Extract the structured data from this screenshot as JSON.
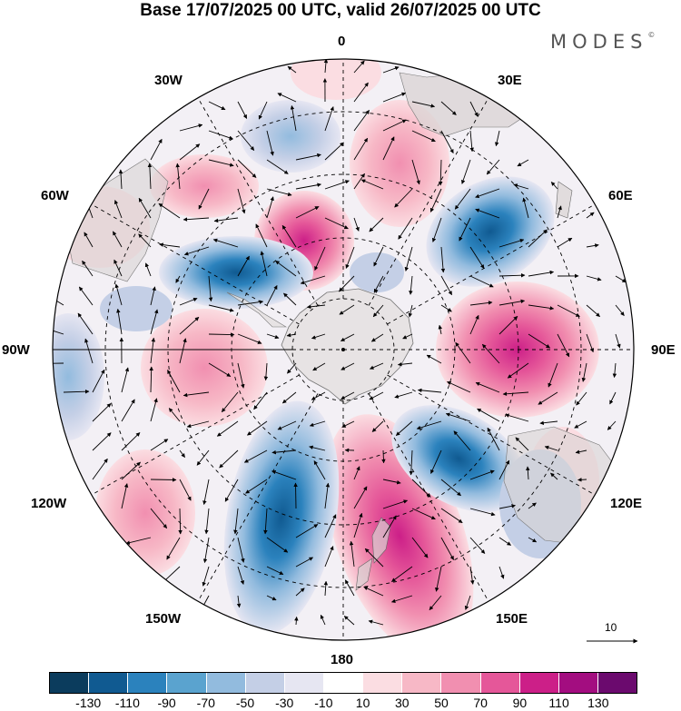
{
  "title": "Base 17/07/2025 00 UTC, valid 26/07/2025 00 UTC",
  "logo": "MODES",
  "logo_mark": "©",
  "meridian_labels": {
    "lon_0": "0",
    "lon_30e": "30E",
    "lon_60e": "60E",
    "lon_90e": "90E",
    "lon_120e": "120E",
    "lon_150e": "150E",
    "lon_180": "180",
    "lon_150w": "150W",
    "lon_120w": "120W",
    "lon_90w": "90W",
    "lon_60w": "60W",
    "lon_30w": "30W"
  },
  "reference_vector": "10",
  "colorbar": {
    "colors": [
      "#0b3c5d",
      "#105a91",
      "#2b82bd",
      "#5aa3cf",
      "#92bbde",
      "#c4cfe6",
      "#e6e6f2",
      "#ffffff",
      "#fbdde2",
      "#f7b8c6",
      "#f18fb0",
      "#e55799",
      "#cc1f88",
      "#a30d80",
      "#6b0a6e"
    ],
    "tick_labels": [
      "-130",
      "-110",
      "-90",
      "-70",
      "-50",
      "-30",
      "-10",
      "10",
      "30",
      "50",
      "70",
      "90",
      "110",
      "130"
    ]
  },
  "anomaly_colors": {
    "neg_strong": "#2b82bd",
    "neg_mid": "#5aa3cf",
    "neg_light": "#c4cfe6",
    "pos_light": "#f7b8c6",
    "pos_mid": "#f18fb0",
    "pos_strong": "#cc1f88",
    "land": "#d9d3d3"
  }
}
